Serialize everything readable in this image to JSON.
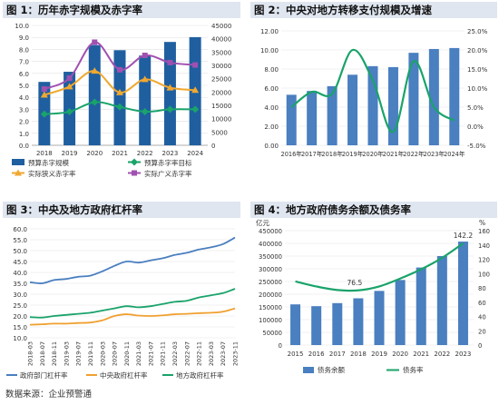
{
  "source": "数据来源：企业预警通",
  "chart_data": [
    {
      "type": "bar",
      "title": "图 1：历年赤字规模及赤字率",
      "categories": [
        "2018",
        "2019",
        "2020",
        "2021",
        "2022",
        "2023",
        "2024"
      ],
      "y_left": {
        "ylim": [
          0,
          10
        ],
        "ticks": [
          "0.0",
          "1.0",
          "2.0",
          "3.0",
          "4.0",
          "5.0",
          "6.0",
          "7.0",
          "8.0",
          "9.0",
          "10.0"
        ]
      },
      "y_right": {
        "ylim": [
          0,
          45000
        ],
        "ticks": [
          "0",
          "5000",
          "10000",
          "15000",
          "20000",
          "25000",
          "30000",
          "35000",
          "40000",
          "45000"
        ]
      },
      "series": [
        {
          "name": "预算赤字规模",
          "kind": "bar",
          "axis": "right",
          "color": "#1f5fa0",
          "values": [
            23800,
            27600,
            37600,
            35700,
            33700,
            38800,
            40600
          ]
        },
        {
          "name": "预算赤字率目标",
          "kind": "line",
          "axis": "left",
          "color": "#1aa36a",
          "marker": "diamond",
          "values": [
            2.6,
            2.8,
            3.6,
            3.2,
            2.8,
            3.0,
            3.0
          ]
        },
        {
          "name": "实际狭义赤字率",
          "kind": "line",
          "axis": "left",
          "color": "#f0a830",
          "marker": "triangle",
          "values": [
            4.2,
            4.9,
            6.2,
            4.4,
            5.5,
            4.8,
            4.6
          ]
        },
        {
          "name": "实际广义赤字率",
          "kind": "line",
          "axis": "left",
          "color": "#a050b0",
          "marker": "square",
          "values": [
            4.7,
            5.6,
            8.6,
            6.3,
            7.5,
            6.9,
            6.7
          ]
        }
      ]
    },
    {
      "type": "bar",
      "title": "图 2：中央对地方转移支付规模及增速",
      "categories": [
        "2016年",
        "2017年",
        "2018年",
        "2019年",
        "2020年",
        "2021年",
        "2022年",
        "2023年",
        "2024年"
      ],
      "y_left": {
        "ylim": [
          0,
          12
        ],
        "ticks": [
          "0.00",
          "2.00",
          "4.00",
          "6.00",
          "8.00",
          "10.00",
          "12.00"
        ]
      },
      "y_right": {
        "ylim": [
          -5,
          25
        ],
        "ticks": [
          "-5.0%",
          "0.0%",
          "5.0%",
          "10.0%",
          "15.0%",
          "20.0%",
          "25.0%"
        ]
      },
      "series": [
        {
          "name": "转移支付规模",
          "kind": "bar",
          "axis": "left",
          "color": "#4a7fc0",
          "values": [
            5.3,
            5.7,
            6.2,
            7.4,
            8.3,
            8.2,
            9.7,
            10.1,
            10.2
          ]
        },
        {
          "name": "增速",
          "kind": "line",
          "axis": "right",
          "color": "#1aa36a",
          "values": [
            5.0,
            9.0,
            8.5,
            20.0,
            12.0,
            -1.5,
            17.0,
            5.0,
            1.5
          ]
        }
      ]
    },
    {
      "type": "line",
      "title": "图 3：中央及地方政府杠杆率",
      "categories": [
        "2018-03",
        "2018-07",
        "2018-11",
        "2019-03",
        "2019-07",
        "2019-11",
        "2020-03",
        "2020-07",
        "2020-11",
        "2021-03",
        "2021-07",
        "2021-11",
        "2022-03",
        "2022-07",
        "2022-11",
        "2023-03",
        "2023-07",
        "2023-11"
      ],
      "y": {
        "ylim": [
          10,
          60
        ],
        "ticks": [
          "10.0",
          "15.0",
          "20.0",
          "25.0",
          "30.0",
          "35.0",
          "40.0",
          "45.0",
          "50.0",
          "55.0",
          "60.0"
        ]
      },
      "series": [
        {
          "name": "政府部门杠杆率",
          "color": "#4a7fc0",
          "values": [
            35.5,
            35.0,
            36.5,
            37.0,
            38.0,
            38.5,
            40.5,
            43.0,
            45.0,
            44.5,
            45.5,
            46.5,
            48.0,
            49.0,
            50.5,
            51.5,
            53.0,
            56.0
          ]
        },
        {
          "name": "中央政府杠杆率",
          "color": "#f0a030",
          "values": [
            16.0,
            16.2,
            16.5,
            16.5,
            16.8,
            17.0,
            18.0,
            20.0,
            20.8,
            20.2,
            20.0,
            20.3,
            20.8,
            21.0,
            21.3,
            21.5,
            22.0,
            23.5
          ]
        },
        {
          "name": "地方政府杠杆率",
          "color": "#1aa36a",
          "values": [
            19.5,
            19.3,
            20.0,
            20.5,
            21.0,
            21.5,
            22.5,
            23.5,
            24.5,
            24.0,
            24.5,
            25.5,
            26.5,
            27.0,
            28.5,
            29.5,
            30.5,
            32.5
          ]
        }
      ]
    },
    {
      "type": "bar",
      "title": "图 4：地方政府债务余额及债务率",
      "categories": [
        "2015",
        "2016",
        "2017",
        "2018",
        "2019",
        "2020",
        "2021",
        "2022",
        "2023"
      ],
      "y_left": {
        "unit": "亿元",
        "ylim": [
          0,
          450000
        ],
        "ticks": [
          "0",
          "50000",
          "100000",
          "150000",
          "200000",
          "250000",
          "300000",
          "350000",
          "400000",
          "450000"
        ]
      },
      "y_right": {
        "unit": "%",
        "ylim": [
          0,
          160
        ],
        "ticks": [
          "0",
          "20",
          "40",
          "60",
          "80",
          "100",
          "120",
          "140",
          "160"
        ]
      },
      "series": [
        {
          "name": "债务余额",
          "kind": "bar",
          "axis": "left",
          "color": "#4a7fc0",
          "values": [
            160000,
            153000,
            165000,
            184000,
            213000,
            256000,
            305000,
            350000,
            407000
          ]
        },
        {
          "name": "债务率",
          "kind": "line",
          "axis": "right",
          "color": "#1aa36a",
          "values": [
            89,
            82,
            77,
            76.5,
            82,
            93,
            106,
            122,
            142.2
          ]
        }
      ],
      "annotations": [
        "76.5",
        "142.2"
      ]
    }
  ]
}
